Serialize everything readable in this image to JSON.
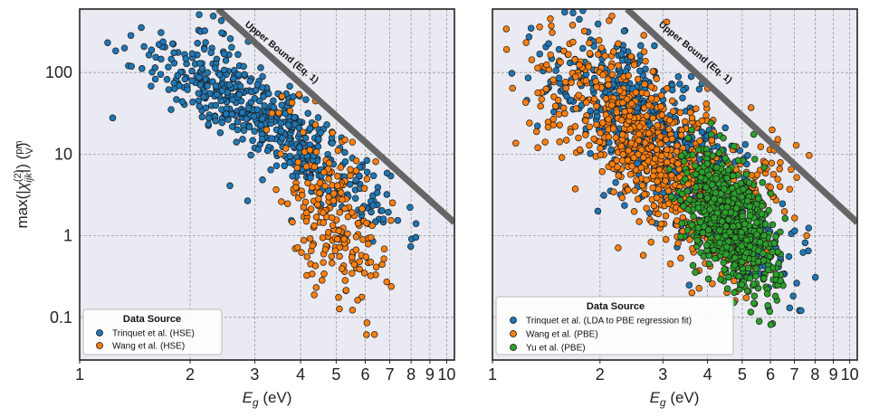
{
  "colors": {
    "background": "#eaeaf2",
    "blue": "#1f77b4",
    "orange": "#ff7f0e",
    "green": "#2ca02c",
    "bound": "#666666",
    "grid": "#9a9a9a"
  },
  "chart_data": [
    {
      "type": "scatter",
      "panel": "left",
      "xscale": "log",
      "yscale": "log",
      "xlim": [
        1,
        10.5
      ],
      "ylim": [
        0.03,
        600
      ],
      "xlabel": "E_g (eV)",
      "ylabel": "max(|χ_ijk^(2)|) (pm/V)",
      "xticks": [
        1,
        2,
        3,
        4,
        5,
        6,
        7,
        8,
        9,
        10
      ],
      "xtick_labels": [
        "1",
        "2",
        "3",
        "4",
        "5",
        "6",
        "7",
        "8",
        "9",
        "10"
      ],
      "yticks": [
        0.1,
        1,
        10,
        100
      ],
      "ytick_labels": [
        "0.1",
        "1",
        "10",
        "100"
      ],
      "bound": {
        "label": "Upper Bound (Eq. 1)",
        "x": [
          2.38,
          10.5
        ],
        "y": [
          600,
          1.45
        ]
      },
      "legend": {
        "title": "Data Source",
        "location": "lower-left"
      },
      "series": [
        {
          "name": "Trinquet et al. (HSE)",
          "color": "#1f77b4",
          "count": 560,
          "trend": [
            [
              1,
              250
            ],
            [
              1.5,
              150
            ],
            [
              2,
              95
            ],
            [
              2.5,
              60
            ],
            [
              3,
              35
            ],
            [
              4,
              13
            ],
            [
              5,
              6
            ],
            [
              6,
              3.5
            ],
            [
              7,
              1.8
            ],
            [
              8,
              0.9
            ],
            [
              9,
              0.35
            ],
            [
              10,
              0.15
            ]
          ],
          "xrange": [
            1,
            10.4
          ],
          "spread": 0.28
        },
        {
          "name": "Wang et al. (HSE)",
          "color": "#ff7f0e",
          "count": 210,
          "trend": [
            [
              3,
              12
            ],
            [
              4,
              4
            ],
            [
              5,
              1.5
            ],
            [
              6,
              0.8
            ],
            [
              7,
              0.5
            ],
            [
              8,
              0.3
            ]
          ],
          "xrange": [
            3,
            8
          ],
          "spread": 0.5
        }
      ]
    },
    {
      "type": "scatter",
      "panel": "right",
      "xscale": "log",
      "yscale": "log",
      "xlim": [
        1,
        10.5
      ],
      "ylim": [
        0.03,
        600
      ],
      "xlabel": "E_g (eV)",
      "xticks": [
        1,
        2,
        3,
        4,
        5,
        6,
        7,
        8,
        9,
        10
      ],
      "xtick_labels": [
        "1",
        "2",
        "3",
        "4",
        "5",
        "6",
        "7",
        "8",
        "9",
        "10"
      ],
      "yticks": [
        0.1,
        1,
        10,
        100
      ],
      "bound": {
        "label": "Upper Bound (Eq. 1)",
        "x": [
          2.38,
          10.5
        ],
        "y": [
          600,
          1.45
        ]
      },
      "legend": {
        "title": "Data Source",
        "location": "lower-left"
      },
      "series": [
        {
          "name": "Trinquet et al. (LDA to PBE regression fit)",
          "color": "#1f77b4",
          "count": 750,
          "trend": [
            [
              1,
              150
            ],
            [
              1.5,
              90
            ],
            [
              2,
              50
            ],
            [
              3,
              15
            ],
            [
              4,
              5
            ],
            [
              5,
              1.5
            ],
            [
              6,
              0.7
            ],
            [
              7,
              0.4
            ],
            [
              8,
              0.25
            ],
            [
              9.5,
              0.12
            ]
          ],
          "xrange": [
            1,
            9.6
          ],
          "spread": 0.42
        },
        {
          "name": "Wang et al. (PBE)",
          "color": "#ff7f0e",
          "count": 800,
          "trend": [
            [
              1,
              120
            ],
            [
              1.5,
              70
            ],
            [
              2,
              35
            ],
            [
              2.5,
              18
            ],
            [
              3,
              8
            ],
            [
              4,
              3
            ],
            [
              5,
              2
            ],
            [
              6,
              3
            ],
            [
              7,
              4
            ]
          ],
          "xrange": [
            1,
            9.2
          ],
          "spread": 0.45
        },
        {
          "name": "Yu et al. (PBE)",
          "color": "#2ca02c",
          "count": 750,
          "trend": [
            [
              3,
              5
            ],
            [
              3.5,
              3.5
            ],
            [
              4,
              2.5
            ],
            [
              5,
              1.2
            ],
            [
              6,
              0.5
            ],
            [
              7,
              0.25
            ]
          ],
          "xrange": [
            3,
            7.2
          ],
          "spread": 0.38
        }
      ]
    }
  ]
}
